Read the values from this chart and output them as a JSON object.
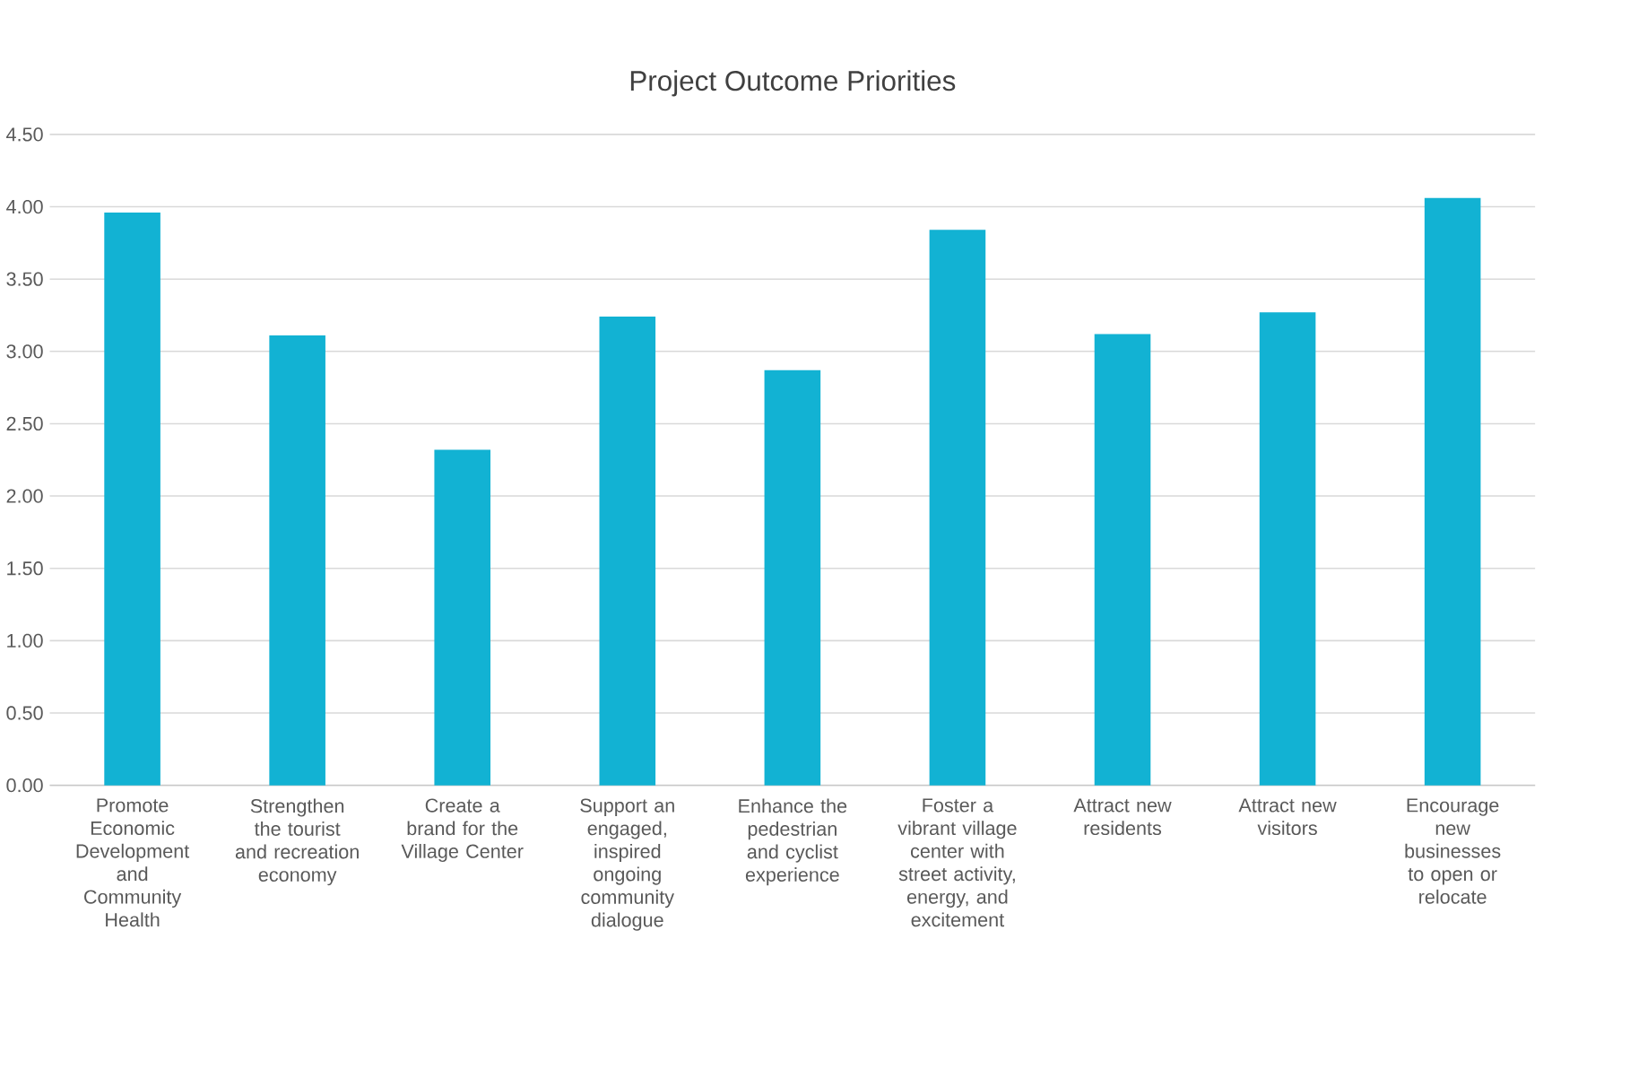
{
  "chart_data": {
    "type": "bar",
    "title": "Project Outcome Priorities",
    "categories": [
      "Promote Economic Development and Community Health",
      "Strengthen the tourist and recreation economy",
      "Create a brand for the Village Center",
      "Support an engaged, inspired ongoing community dialogue",
      "Enhance the pedestrian and cyclist experience",
      "Foster a vibrant village center with street activity, energy, and excitement",
      "Attract new residents",
      "Attract new visitors",
      "Encourage new businesses to open or relocate"
    ],
    "values": [
      3.96,
      3.11,
      2.32,
      3.24,
      2.87,
      3.84,
      3.12,
      3.27,
      4.06
    ],
    "color": "#12b2d3",
    "ylim": [
      0,
      4.5
    ],
    "yticks": [
      {
        "value": 0,
        "label": "0.00"
      },
      {
        "value": 0.5,
        "label": "0.50"
      },
      {
        "value": 1,
        "label": "1.00"
      },
      {
        "value": 1.5,
        "label": "1.50"
      },
      {
        "value": 2,
        "label": "2.00"
      },
      {
        "value": 2.5,
        "label": "2.50"
      },
      {
        "value": 3,
        "label": "3.00"
      },
      {
        "value": 3.5,
        "label": "3.50"
      },
      {
        "value": 4,
        "label": "4.00"
      },
      {
        "value": 4.5,
        "label": "4.50"
      }
    ],
    "grid": "y"
  }
}
